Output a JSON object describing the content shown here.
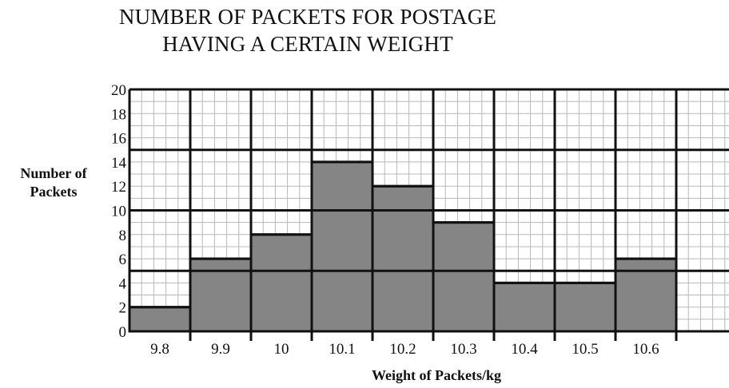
{
  "chart_data": {
    "type": "bar",
    "title_lines": [
      "NUMBER OF PACKETS FOR POSTAGE",
      "HAVING A CERTAIN WEIGHT"
    ],
    "xlabel": "Weight of Packets/kg",
    "ylabel_lines": [
      "Number of",
      "Packets"
    ],
    "categories": [
      "9.8",
      "9.9",
      "10",
      "10.1",
      "10.2",
      "10.3",
      "10.4",
      "10.5",
      "10.6"
    ],
    "values": [
      2,
      6,
      8,
      14,
      12,
      9,
      4,
      4,
      6
    ],
    "ylim": [
      0,
      20
    ],
    "yticks": [
      0,
      2,
      4,
      6,
      8,
      10,
      12,
      14,
      16,
      18,
      20
    ],
    "grid": true,
    "bar_color": "#858585",
    "grid_color": "#b8b8b8"
  }
}
